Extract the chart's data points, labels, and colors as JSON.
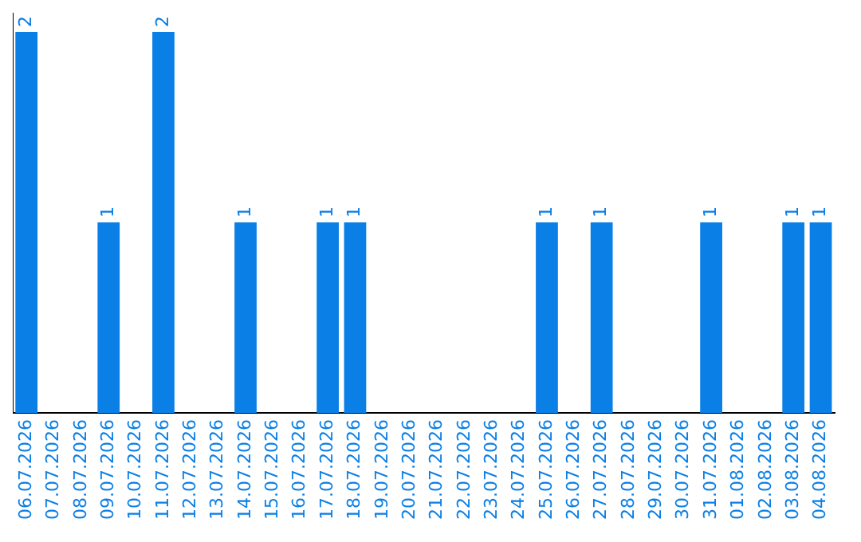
{
  "chart_data": {
    "type": "bar",
    "categories": [
      "06.07.2026",
      "07.07.2026",
      "08.07.2026",
      "09.07.2026",
      "10.07.2026",
      "11.07.2026",
      "12.07.2026",
      "13.07.2026",
      "14.07.2026",
      "15.07.2026",
      "16.07.2026",
      "17.07.2026",
      "18.07.2026",
      "19.07.2026",
      "20.07.2026",
      "21.07.2026",
      "22.07.2026",
      "23.07.2026",
      "24.07.2026",
      "25.07.2026",
      "26.07.2026",
      "27.07.2026",
      "28.07.2026",
      "29.07.2026",
      "30.07.2026",
      "31.07.2026",
      "01.08.2026",
      "02.08.2026",
      "03.08.2026",
      "04.08.2026"
    ],
    "values": [
      2,
      0,
      0,
      1,
      0,
      2,
      0,
      0,
      1,
      0,
      0,
      1,
      1,
      0,
      0,
      0,
      0,
      0,
      0,
      1,
      0,
      1,
      0,
      0,
      0,
      1,
      0,
      0,
      1,
      1
    ],
    "value_labels": [
      "2",
      null,
      null,
      "1",
      null,
      "2",
      null,
      null,
      "1",
      null,
      null,
      "1",
      "1",
      null,
      null,
      null,
      null,
      null,
      null,
      "1",
      null,
      "1",
      null,
      null,
      null,
      "1",
      null,
      null,
      "1",
      "1"
    ],
    "color": "#0a7fe6",
    "ylim": [
      0,
      2.1
    ],
    "tick_labels": "x",
    "grid": false,
    "legend": false
  }
}
